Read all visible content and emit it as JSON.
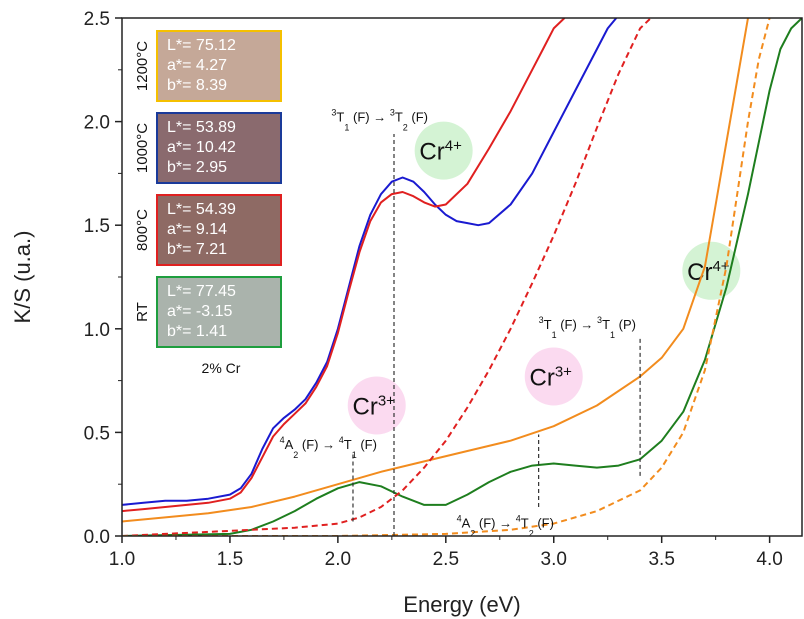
{
  "chart_data": {
    "type": "line",
    "title": "",
    "xlabel": "Energy (eV)",
    "ylabel": "K/S (u.a.)",
    "xlim": [
      1.0,
      4.15
    ],
    "ylim": [
      0.0,
      2.5
    ],
    "x_ticks": [
      1.0,
      1.5,
      2.0,
      2.5,
      3.0,
      3.5,
      4.0
    ],
    "x_tick_labels": [
      "1.0",
      "1.5",
      "2.0",
      "2.5",
      "3.0",
      "3.5",
      "4.0"
    ],
    "y_ticks": [
      0.0,
      0.5,
      1.0,
      1.5,
      2.0,
      2.5
    ],
    "y_tick_labels": [
      "0.0",
      "0.5",
      "1.0",
      "1.5",
      "2.0",
      "2.5"
    ],
    "grid": false,
    "series": [
      {
        "color": "#1a1ad0",
        "dash": "solid",
        "x": [
          1.0,
          1.1,
          1.2,
          1.3,
          1.4,
          1.5,
          1.55,
          1.6,
          1.65,
          1.7,
          1.75,
          1.8,
          1.85,
          1.9,
          1.95,
          2.0,
          2.05,
          2.1,
          2.15,
          2.2,
          2.25,
          2.3,
          2.35,
          2.4,
          2.45,
          2.5,
          2.55,
          2.6,
          2.65,
          2.7,
          2.8,
          2.9,
          3.0,
          3.1,
          3.2,
          3.25,
          3.29
        ],
        "y": [
          0.15,
          0.16,
          0.17,
          0.17,
          0.18,
          0.2,
          0.23,
          0.3,
          0.42,
          0.52,
          0.57,
          0.61,
          0.66,
          0.74,
          0.84,
          1.0,
          1.2,
          1.4,
          1.55,
          1.65,
          1.71,
          1.73,
          1.71,
          1.66,
          1.6,
          1.55,
          1.52,
          1.51,
          1.5,
          1.51,
          1.6,
          1.75,
          1.95,
          2.15,
          2.35,
          2.45,
          2.5
        ]
      },
      {
        "color": "#e02020",
        "dash": "solid",
        "x": [
          1.0,
          1.1,
          1.2,
          1.3,
          1.4,
          1.5,
          1.55,
          1.6,
          1.65,
          1.7,
          1.75,
          1.8,
          1.85,
          1.9,
          1.95,
          2.0,
          2.05,
          2.1,
          2.15,
          2.2,
          2.25,
          2.3,
          2.35,
          2.4,
          2.45,
          2.5,
          2.6,
          2.7,
          2.8,
          2.9,
          2.95,
          3.0,
          3.05
        ],
        "y": [
          0.12,
          0.13,
          0.14,
          0.15,
          0.16,
          0.18,
          0.21,
          0.28,
          0.38,
          0.48,
          0.54,
          0.59,
          0.64,
          0.72,
          0.82,
          0.98,
          1.18,
          1.37,
          1.52,
          1.61,
          1.65,
          1.66,
          1.64,
          1.61,
          1.59,
          1.6,
          1.7,
          1.87,
          2.05,
          2.25,
          2.35,
          2.45,
          2.5
        ]
      },
      {
        "color": "#f28c1e",
        "dash": "solid",
        "x": [
          1.0,
          1.2,
          1.4,
          1.6,
          1.8,
          2.0,
          2.2,
          2.4,
          2.6,
          2.8,
          3.0,
          3.2,
          3.4,
          3.5,
          3.6,
          3.7,
          3.75,
          3.8,
          3.85,
          3.9
        ],
        "y": [
          0.07,
          0.09,
          0.11,
          0.14,
          0.19,
          0.25,
          0.31,
          0.36,
          0.41,
          0.46,
          0.53,
          0.63,
          0.77,
          0.86,
          1.0,
          1.3,
          1.6,
          1.9,
          2.2,
          2.5
        ]
      },
      {
        "color": "#1e7e1e",
        "dash": "solid",
        "x": [
          1.0,
          1.5,
          1.6,
          1.7,
          1.8,
          1.9,
          2.0,
          2.1,
          2.2,
          2.3,
          2.4,
          2.5,
          2.6,
          2.7,
          2.8,
          2.9,
          3.0,
          3.1,
          3.2,
          3.3,
          3.4,
          3.5,
          3.6,
          3.7,
          3.8,
          3.9,
          3.95,
          4.0,
          4.05,
          4.1,
          4.15
        ],
        "y": [
          0.0,
          0.01,
          0.03,
          0.07,
          0.12,
          0.18,
          0.23,
          0.26,
          0.24,
          0.19,
          0.15,
          0.15,
          0.2,
          0.26,
          0.31,
          0.34,
          0.35,
          0.34,
          0.33,
          0.34,
          0.37,
          0.46,
          0.6,
          0.85,
          1.2,
          1.65,
          1.9,
          2.15,
          2.35,
          2.45,
          2.5
        ]
      },
      {
        "color": "#e02020",
        "dash": "dashed",
        "x": [
          1.0,
          1.2,
          1.4,
          1.6,
          1.8,
          2.0,
          2.1,
          2.2,
          2.3,
          2.4,
          2.5,
          2.6,
          2.7,
          2.8,
          2.9,
          3.0,
          3.1,
          3.2,
          3.3,
          3.4,
          3.45
        ],
        "y": [
          0.0,
          0.01,
          0.02,
          0.03,
          0.04,
          0.06,
          0.09,
          0.14,
          0.22,
          0.33,
          0.46,
          0.62,
          0.8,
          1.0,
          1.22,
          1.45,
          1.7,
          1.97,
          2.23,
          2.45,
          2.5
        ]
      },
      {
        "color": "#f28c1e",
        "dash": "dashed",
        "x": [
          1.0,
          2.0,
          2.5,
          2.8,
          3.0,
          3.2,
          3.4,
          3.5,
          3.6,
          3.7,
          3.8,
          3.85,
          3.9,
          3.95,
          4.0
        ],
        "y": [
          0.0,
          0.0,
          0.01,
          0.03,
          0.06,
          0.12,
          0.22,
          0.33,
          0.5,
          0.8,
          1.3,
          1.65,
          2.0,
          2.3,
          2.5
        ]
      }
    ],
    "transitions": [
      {
        "label_parts": [
          {
            "t": "3",
            "sup": true
          },
          {
            "t": "T"
          },
          {
            "t": "1",
            "sub": true
          },
          {
            "t": " (F) → "
          },
          {
            "t": "3",
            "sup": true
          },
          {
            "t": "T"
          },
          {
            "t": "2",
            "sub": true
          },
          {
            "t": " (F)"
          }
        ],
        "x": 2.26,
        "y_bottom": 0.0,
        "y_top": 1.94,
        "label_x": 1.97,
        "label_y": 2.0
      },
      {
        "label_parts": [
          {
            "t": "4",
            "sup": true
          },
          {
            "t": "A"
          },
          {
            "t": "2",
            "sub": true
          },
          {
            "t": " (F) → "
          },
          {
            "t": "4",
            "sup": true
          },
          {
            "t": "T"
          },
          {
            "t": "1",
            "sub": true
          },
          {
            "t": " (F)"
          }
        ],
        "x": 2.07,
        "y_bottom": 0.07,
        "y_top": 0.4,
        "label_x": 1.73,
        "label_y": 0.42
      },
      {
        "label_parts": [
          {
            "t": "3",
            "sup": true
          },
          {
            "t": "T"
          },
          {
            "t": "1",
            "sub": true
          },
          {
            "t": " (F) → "
          },
          {
            "t": "3",
            "sup": true
          },
          {
            "t": "T"
          },
          {
            "t": "1",
            "sub": true
          },
          {
            "t": " (P)"
          }
        ],
        "x": 3.4,
        "y_bottom": 0.29,
        "y_top": 0.96,
        "label_x": 2.93,
        "label_y": 1.0
      },
      {
        "label_parts": [
          {
            "t": "4",
            "sup": true
          },
          {
            "t": "A"
          },
          {
            "t": "2",
            "sub": true
          },
          {
            "t": " (F) → "
          },
          {
            "t": "4",
            "sup": true
          },
          {
            "t": "T"
          },
          {
            "t": "2",
            "sub": true
          },
          {
            "t": " (F)"
          }
        ],
        "x": 2.93,
        "y_bottom": 0.14,
        "y_top": 0.49,
        "label_x": 2.55,
        "label_y": 0.04
      }
    ],
    "ion_badges": [
      {
        "ion": "Cr",
        "charge": "4+",
        "color": "#d4f3d4",
        "x": 2.49,
        "y": 1.86
      },
      {
        "ion": "Cr",
        "charge": "3+",
        "color": "#fbdaf0",
        "x": 2.18,
        "y": 0.63
      },
      {
        "ion": "Cr",
        "charge": "3+",
        "color": "#fbdaf0",
        "x": 3.0,
        "y": 0.77
      },
      {
        "ion": "Cr",
        "charge": "4+",
        "color": "#d4f3d4",
        "x": 3.73,
        "y": 1.28
      }
    ]
  },
  "color_samples": [
    {
      "temp": "1200°C",
      "L": "L*= 75.12",
      "a": "a*= 4.27",
      "b": "b*= 8.39",
      "fill": "#c5a898",
      "border": "#f5c000"
    },
    {
      "temp": "1000°C",
      "L": "L*= 53.89",
      "a": "a*= 10.42",
      "b": "b*= 2.95",
      "fill": "#8a6a6e",
      "border": "#1a3a9a"
    },
    {
      "temp": "800°C",
      "L": "L*= 54.39",
      "a": "a*= 9.14",
      "b": "b*= 7.21",
      "fill": "#8e6a64",
      "border": "#e02020"
    },
    {
      "temp": "RT",
      "L": "L*= 77.45",
      "a": "a*= -3.15",
      "b": "b*= 1.41",
      "fill": "#aab3ac",
      "border": "#1e9e3e"
    }
  ],
  "sample_label": "2% Cr"
}
